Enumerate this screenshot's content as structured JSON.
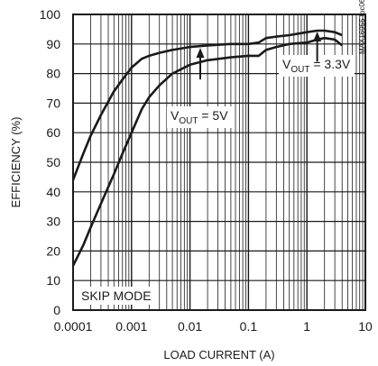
{
  "chart_data": {
    "type": "line",
    "title": "",
    "xlabel": "LOAD CURRENT (A)",
    "ylabel": "EFFICIENCY (%)",
    "x_scale": "log",
    "xlim": [
      0.0001,
      10
    ],
    "ylim": [
      0,
      100
    ],
    "x_tick_labels": [
      "0.0001",
      "0.001",
      "0.01",
      "0.1",
      "1",
      "10"
    ],
    "y_tick_labels": [
      "0",
      "10",
      "20",
      "30",
      "40",
      "50",
      "60",
      "70",
      "80",
      "90",
      "100"
    ],
    "grid": true,
    "series": [
      {
        "name": "VOUT = 5V",
        "x": [
          0.0001,
          0.00015,
          0.0002,
          0.0003,
          0.0005,
          0.0007,
          0.001,
          0.0015,
          0.002,
          0.003,
          0.005,
          0.01,
          0.02,
          0.05,
          0.1,
          0.15,
          0.2,
          0.3,
          0.5,
          1,
          1.5,
          2,
          3,
          4
        ],
        "y": [
          44,
          53,
          59,
          66,
          74,
          78,
          82,
          85,
          86,
          87,
          88,
          89,
          89.5,
          90,
          90,
          90.5,
          92,
          92.5,
          93,
          94,
          94.5,
          94.5,
          94,
          93
        ]
      },
      {
        "name": "VOUT = 3.3V",
        "x": [
          0.0001,
          0.00015,
          0.0002,
          0.0003,
          0.0005,
          0.0007,
          0.001,
          0.0015,
          0.002,
          0.003,
          0.005,
          0.01,
          0.02,
          0.05,
          0.1,
          0.15,
          0.2,
          0.3,
          0.5,
          1,
          1.5,
          2,
          3,
          4
        ],
        "y": [
          15,
          22,
          28,
          36,
          46,
          53,
          60,
          68,
          72,
          76,
          80,
          83,
          84.5,
          85.5,
          86,
          86,
          88,
          89,
          90,
          90.5,
          91.5,
          92,
          91.5,
          89.5
        ]
      }
    ],
    "annotations": [
      {
        "text": "V",
        "sub": "OUT",
        "tail": " = 5V",
        "arrow_x": 0.015,
        "arrow_y": 89
      },
      {
        "text": "V",
        "sub": "OUT",
        "tail": " = 3.3V",
        "arrow_x": 1.5,
        "arrow_y": 94.5
      }
    ],
    "mode_label": "SKIP MODE",
    "figure_id": "MAX16955 toc06",
    "colors": {
      "line": "#1a1a1a",
      "grid": "#1a1a1a",
      "background": "#ffffff"
    }
  }
}
